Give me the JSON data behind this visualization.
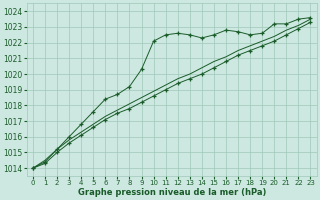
{
  "x": [
    0,
    1,
    2,
    3,
    4,
    5,
    6,
    7,
    8,
    9,
    10,
    11,
    12,
    13,
    14,
    15,
    16,
    17,
    18,
    19,
    20,
    21,
    22,
    23
  ],
  "line_peak": [
    1014.0,
    1014.4,
    1015.2,
    1016.0,
    1016.8,
    1017.6,
    1018.4,
    1018.7,
    1019.2,
    1020.3,
    1022.1,
    1022.5,
    1022.6,
    1022.5,
    1022.3,
    1022.5,
    1022.8,
    1022.7,
    1022.5,
    1022.6,
    1023.2,
    1023.2,
    1023.5,
    1023.6
  ],
  "line_low1": [
    1014.0,
    1014.3,
    1015.0,
    1015.6,
    1016.1,
    1016.6,
    1017.1,
    1017.5,
    1017.8,
    1018.2,
    1018.6,
    1019.0,
    1019.4,
    1019.7,
    1020.0,
    1020.4,
    1020.8,
    1021.2,
    1021.5,
    1021.8,
    1022.1,
    1022.5,
    1022.9,
    1023.3
  ],
  "line_low2": [
    1014.0,
    1014.5,
    1015.2,
    1015.8,
    1016.3,
    1016.8,
    1017.3,
    1017.7,
    1018.1,
    1018.5,
    1018.9,
    1019.3,
    1019.7,
    1020.0,
    1020.4,
    1020.8,
    1021.1,
    1021.5,
    1021.8,
    1022.1,
    1022.4,
    1022.8,
    1023.1,
    1023.5
  ],
  "bg_color": "#cde8e0",
  "grid_color": "#a0c8b8",
  "line_color": "#1a5c2a",
  "xlabel": "Graphe pression niveau de la mer (hPa)",
  "ylim_min": 1013.5,
  "ylim_max": 1024.5,
  "xlim_min": -0.5,
  "xlim_max": 23.5,
  "yticks": [
    1014,
    1015,
    1016,
    1017,
    1018,
    1019,
    1020,
    1021,
    1022,
    1023,
    1024
  ],
  "xticks": [
    0,
    1,
    2,
    3,
    4,
    5,
    6,
    7,
    8,
    9,
    10,
    11,
    12,
    13,
    14,
    15,
    16,
    17,
    18,
    19,
    20,
    21,
    22,
    23
  ]
}
